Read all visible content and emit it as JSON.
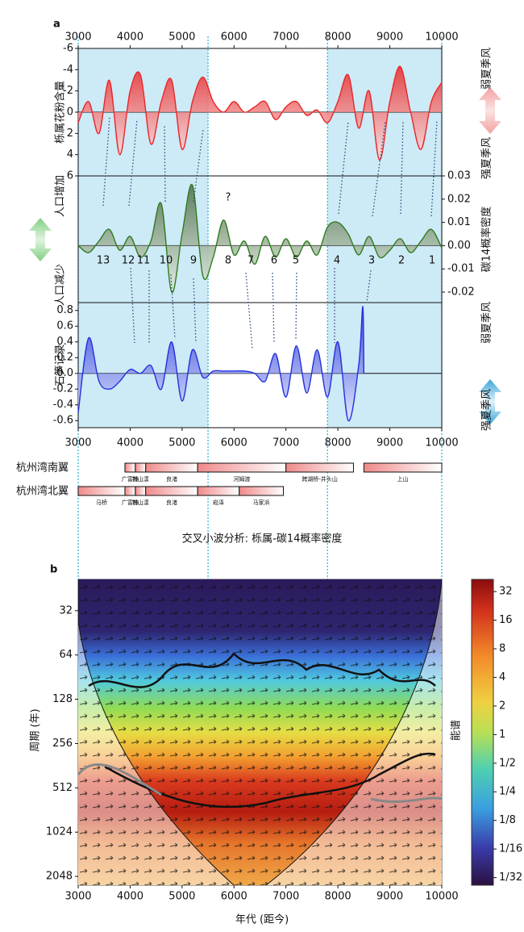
{
  "chart_data": [
    {
      "type": "line",
      "panel_label": "a",
      "ylabel": "栎属花粉含量",
      "right_labels": [
        "弱夏季风",
        "强夏季风"
      ],
      "x": [
        3000,
        3200,
        3400,
        3600,
        3800,
        4000,
        4200,
        4400,
        4600,
        4800,
        5000,
        5200,
        5400,
        5600,
        5800,
        6000,
        6200,
        6400,
        6600,
        6800,
        7000,
        7200,
        7400,
        7600,
        7800,
        8000,
        8200,
        8400,
        8600,
        8800,
        9000,
        9200,
        9400,
        9600,
        9800,
        10000
      ],
      "series": [
        {
          "color": "#e8282a",
          "values": [
            1,
            -1,
            2,
            -3,
            4,
            -2,
            -3.5,
            3,
            -1,
            -3,
            3.5,
            -1,
            -3.3,
            -1,
            0,
            -1,
            0,
            -0.5,
            -1,
            0.7,
            -0.5,
            -1,
            0.3,
            -0.2,
            1,
            -1,
            -3.5,
            1.5,
            -2,
            4.5,
            -1,
            -4.3,
            0,
            3.5,
            -1,
            -2.8
          ]
        }
      ],
      "xlim": [
        3000,
        10000
      ],
      "xticks": [
        3000,
        4000,
        5000,
        6000,
        7000,
        8000,
        9000,
        10000
      ],
      "ylim": [
        -6,
        6
      ],
      "y_inverted": true,
      "yticks": [
        -6,
        -4,
        -2,
        0,
        2,
        4,
        6
      ],
      "shaded_ranges": [
        [
          3000,
          5500
        ],
        [
          7800,
          10000
        ]
      ]
    },
    {
      "type": "line",
      "left_labels": [
        "人口增加",
        "人口减少"
      ],
      "ylabel": "碳14概率密度",
      "event_labels": [
        "13",
        "12",
        "11",
        "10",
        "9",
        "8",
        "7",
        "6",
        "5",
        "4",
        "3",
        "2",
        "1"
      ],
      "annotation": "?",
      "x": [
        3000,
        3200,
        3400,
        3600,
        3800,
        4000,
        4200,
        4400,
        4600,
        4800,
        5000,
        5200,
        5400,
        5600,
        5800,
        6000,
        6200,
        6400,
        6600,
        6800,
        7000,
        7200,
        7400,
        7600,
        7800,
        8000,
        8200,
        8400,
        8600,
        8800,
        9000,
        9200,
        9400,
        9600,
        9800,
        10000
      ],
      "series": [
        {
          "color": "#2e7d1f",
          "values": [
            0,
            -0.003,
            0.002,
            0.007,
            -0.002,
            0.004,
            -0.005,
            0.002,
            0.018,
            -0.02,
            0.005,
            0.026,
            -0.013,
            -0.005,
            0.011,
            -0.004,
            0.002,
            -0.008,
            0.004,
            -0.005,
            0.003,
            -0.005,
            0.002,
            -0.004,
            0.008,
            0.01,
            0.005,
            -0.004,
            0.004,
            -0.005,
            -0.002,
            0.003,
            -0.003,
            0.002,
            0.007,
            -0.001
          ]
        }
      ],
      "xlim": [
        3000,
        10000
      ],
      "ylim": [
        -0.0245,
        0.03
      ],
      "yticks": [
        0.03,
        0.02,
        0.01,
        {
          "value": 0,
          "label": "0.00"
        },
        -0.01,
        -0.02
      ]
    },
    {
      "type": "line",
      "ylabel": "石笋记录",
      "right_labels": [
        "弱夏季风",
        "强夏季风"
      ],
      "x": [
        3000,
        3200,
        3400,
        3600,
        3800,
        4000,
        4200,
        4400,
        4600,
        4800,
        5000,
        5200,
        5400,
        5600,
        5800,
        6000,
        6200,
        6400,
        6600,
        6800,
        7000,
        7200,
        7400,
        7600,
        7800,
        8000,
        8200,
        8400,
        8480,
        8500
      ],
      "series": [
        {
          "color": "#2233dd",
          "values": [
            -0.5,
            0.45,
            -0.1,
            -0.2,
            -0.1,
            0.05,
            0,
            0.1,
            -0.2,
            0.4,
            -0.35,
            0.3,
            -0.05,
            0.03,
            0.03,
            0.03,
            0.03,
            0,
            -0.1,
            0.25,
            -0.3,
            0.35,
            -0.25,
            0.3,
            -0.3,
            0.4,
            -0.6,
            0.1,
            0.85,
            0
          ]
        }
      ],
      "xlim": [
        3000,
        10000
      ],
      "xticks": [
        3000,
        4000,
        5000,
        6000,
        7000,
        8000,
        9000,
        10000
      ],
      "ylim": [
        -0.69,
        0.9
      ],
      "yticks": [
        0.8,
        0.6,
        0.4,
        0.2,
        {
          "value": 0,
          "label": "0.0"
        },
        -0.2,
        -0.4,
        -0.6
      ]
    },
    {
      "type": "timeline",
      "xlim": [
        3000,
        10000
      ],
      "rows": [
        {
          "name": "杭州湾南翼",
          "segments": [
            {
              "label": "广富林",
              "start": 3900,
              "end": 4100
            },
            {
              "label": "钱山漾",
              "start": 4100,
              "end": 4300
            },
            {
              "label": "良渚",
              "start": 4300,
              "end": 5300
            },
            {
              "label": "河姆渡",
              "start": 5300,
              "end": 7000
            },
            {
              "label": "跨湖桥-井头山",
              "start": 7000,
              "end": 8300
            },
            {
              "label": "上山",
              "start": 8500,
              "end": 10000
            }
          ]
        },
        {
          "name": "杭州湾北翼",
          "segments": [
            {
              "label": "马桥",
              "start": 3000,
              "end": 3900
            },
            {
              "label": "广富林",
              "start": 3900,
              "end": 4100
            },
            {
              "label": "钱山漾",
              "start": 4100,
              "end": 4300
            },
            {
              "label": "良渚",
              "start": 4300,
              "end": 5300
            },
            {
              "label": "崧泽",
              "start": 5300,
              "end": 6100
            },
            {
              "label": "马家浜",
              "start": 6100,
              "end": 6950
            }
          ]
        }
      ]
    },
    {
      "type": "wavelet",
      "panel_label": "b",
      "title": "交叉小波分析: 栎属-碳14概率密度",
      "xlabel": "年代 (距今)",
      "ylabel": "周期 (年)",
      "xlim": [
        3000,
        10000
      ],
      "xticks": [
        3000,
        4000,
        5000,
        6000,
        7000,
        8000,
        9000,
        10000
      ],
      "ylim": [
        19.6,
        2350
      ],
      "y_log": true,
      "y_inverted": true,
      "yticks": [
        32,
        64,
        128,
        256,
        512,
        1024,
        2048
      ],
      "colorbar": {
        "label": "能谱",
        "lim": [
          0.026,
          43
        ],
        "log": true,
        "ticks": [
          32,
          16,
          8,
          4,
          2,
          1,
          {
            "value": 0.5,
            "label": "1/2"
          },
          {
            "value": 0.25,
            "label": "1/4"
          },
          {
            "value": 0.125,
            "label": "1/8"
          },
          {
            "value": 0.0625,
            "label": "1/16"
          },
          {
            "value": 0.03125,
            "label": "1/32"
          }
        ]
      }
    }
  ]
}
